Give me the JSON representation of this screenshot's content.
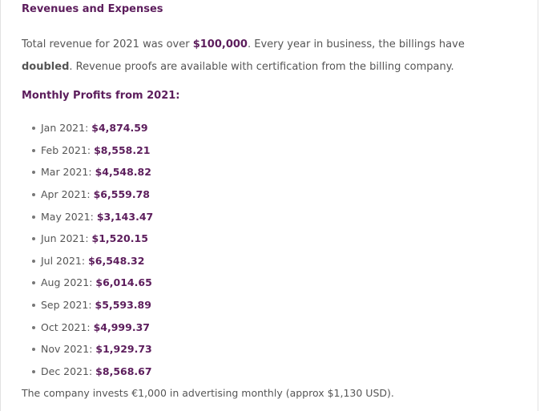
{
  "section": {
    "title": "Revenues and Expenses",
    "paragraph": {
      "text_1": "Total revenue for 2021 was over ",
      "revenue_amount": "$100,000",
      "text_2": ". Every year in business, the billings have ",
      "emphasis": "doubled",
      "text_3": ". Revenue proofs are available with certification from the billing company."
    },
    "subheading": "Monthly Profits from 2021:",
    "monthly_profits": [
      {
        "month": "Jan 2021",
        "amount": "$4,874.59"
      },
      {
        "month": "Feb 2021",
        "amount": "$8,558.21"
      },
      {
        "month": "Mar 2021",
        "amount": "$4,548.82"
      },
      {
        "month": "Apr 2021",
        "amount": "$6,559.78"
      },
      {
        "month": "May 2021",
        "amount": "$3,143.47"
      },
      {
        "month": "Jun 2021",
        "amount": "$1,520.15"
      },
      {
        "month": "Jul 2021",
        "amount": "$6,548.32"
      },
      {
        "month": "Aug 2021",
        "amount": "$6,014.65"
      },
      {
        "month": "Sep 2021",
        "amount": "$5,593.89"
      },
      {
        "month": "Oct 2021",
        "amount": "$4,999.37"
      },
      {
        "month": "Nov 2021",
        "amount": "$1,929.73"
      },
      {
        "month": "Dec 2021",
        "amount": "$8,568.67"
      }
    ],
    "footer_note": "The company invests €1,000 in advertising monthly (approx $1,130 USD)."
  },
  "colors": {
    "accent": "#5c1d5c",
    "body_text": "#555555",
    "border": "#e2e2e2"
  }
}
